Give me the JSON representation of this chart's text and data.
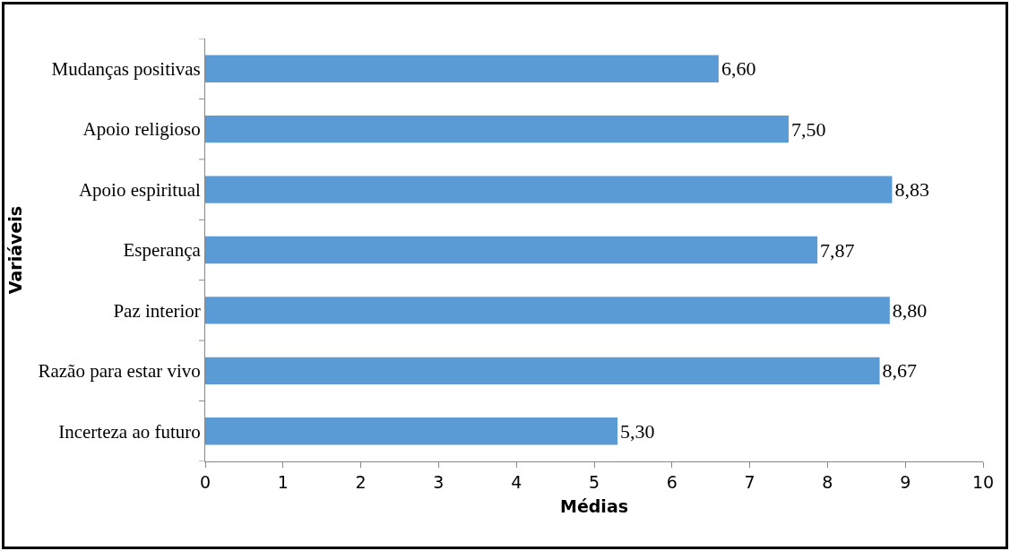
{
  "chart_data": {
    "type": "bar",
    "orientation": "horizontal",
    "xlabel": "Médias",
    "ylabel": "Variáveis",
    "categories": [
      "Mudanças positivas",
      "Apoio religioso",
      "Apoio espiritual",
      "Esperança",
      "Paz interior",
      "Razão para estar vivo",
      "Incerteza ao futuro"
    ],
    "values": [
      6.6,
      7.5,
      8.83,
      7.87,
      8.8,
      8.67,
      5.3
    ],
    "value_labels": [
      "6,60",
      "7,50",
      "8,83",
      "7,87",
      "8,80",
      "8,67",
      "5,30"
    ],
    "color": "#5b9bd5",
    "xlim": [
      0,
      10
    ],
    "xticks": [
      0,
      1,
      2,
      3,
      4,
      5,
      6,
      7,
      8,
      9,
      10
    ],
    "grid": false,
    "legend": false
  }
}
